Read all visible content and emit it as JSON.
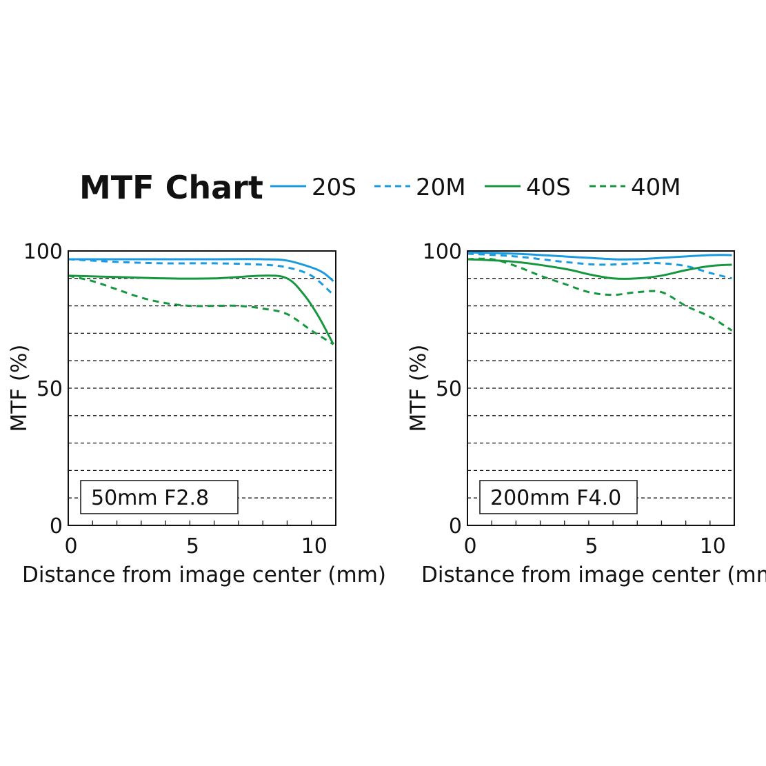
{
  "chart_data": {
    "type": "line",
    "title": "MTF Chart",
    "legend": [
      {
        "name": "20S",
        "color": "#1a9be0",
        "dashed": false
      },
      {
        "name": "20M",
        "color": "#1a9be0",
        "dashed": true
      },
      {
        "name": "40S",
        "color": "#16963e",
        "dashed": false
      },
      {
        "name": "40M",
        "color": "#16963e",
        "dashed": true
      }
    ],
    "legend_placement": "top",
    "charts": [
      {
        "label": "50mm F2.8",
        "xlabel": "Distance from image center (mm)",
        "ylabel": "MTF (%)",
        "xlim": [
          0,
          11
        ],
        "ylim": [
          0,
          100
        ],
        "xticks": [
          "0",
          "5",
          "10"
        ],
        "yticks": [
          "0",
          "50",
          "100"
        ],
        "grid": [
          10,
          20,
          30,
          40,
          50,
          60,
          70,
          80,
          90
        ],
        "series": [
          {
            "name": "20S",
            "x": [
              0,
              2,
              4,
              6,
              8,
              9,
              10,
              10.5,
              10.9
            ],
            "y": [
              97,
              97,
              97,
              97,
              97,
              96.5,
              94,
              92,
              89
            ]
          },
          {
            "name": "20M",
            "x": [
              0,
              2,
              4,
              6,
              8,
              9,
              10,
              10.9
            ],
            "y": [
              97,
              96,
              95.5,
              95.5,
              95,
              94,
              91,
              84
            ]
          },
          {
            "name": "40S",
            "x": [
              0,
              2,
              4,
              6,
              8,
              9,
              9.7,
              10.3,
              10.9
            ],
            "y": [
              91,
              90.5,
              90,
              90,
              91,
              90,
              84,
              76,
              66
            ]
          },
          {
            "name": "40M",
            "x": [
              0,
              1,
              2,
              3,
              4,
              5,
              6,
              7,
              8,
              9,
              10,
              10.9
            ],
            "y": [
              91,
              89,
              86,
              83,
              81,
              80,
              80,
              80,
              79,
              77,
              71,
              66
            ]
          }
        ]
      },
      {
        "label": "200mm F4.0",
        "xlabel": "Distance from image center (mm)",
        "ylabel": "MTF (%)",
        "xlim": [
          0,
          11
        ],
        "ylim": [
          0,
          100
        ],
        "xticks": [
          "0",
          "5",
          "10"
        ],
        "yticks": [
          "0",
          "50",
          "100"
        ],
        "grid": [
          10,
          20,
          30,
          40,
          50,
          60,
          70,
          80,
          90
        ],
        "series": [
          {
            "name": "20S",
            "x": [
              0,
              2,
              4,
              6,
              7,
              8,
              10,
              10.9
            ],
            "y": [
              99.5,
              99,
              98,
              97,
              97,
              97.5,
              98.5,
              98.5
            ]
          },
          {
            "name": "20M",
            "x": [
              0,
              2,
              4,
              5.5,
              7,
              8,
              9,
              10,
              10.9
            ],
            "y": [
              99,
              98,
              96,
              95,
              95.5,
              95.5,
              94.5,
              92,
              90
            ]
          },
          {
            "name": "40S",
            "x": [
              0,
              2,
              4,
              5,
              6,
              7,
              8,
              9,
              10,
              10.9
            ],
            "y": [
              97,
              96,
              93.5,
              91.5,
              90,
              90,
              91,
              93,
              94.5,
              95
            ]
          },
          {
            "name": "40M",
            "x": [
              0,
              1,
              2,
              3,
              4,
              5,
              6,
              7,
              8,
              9,
              10,
              10.9
            ],
            "y": [
              97,
              97,
              94.5,
              91,
              88,
              85,
              84,
              85,
              85,
              80,
              76,
              71
            ]
          }
        ]
      }
    ]
  }
}
